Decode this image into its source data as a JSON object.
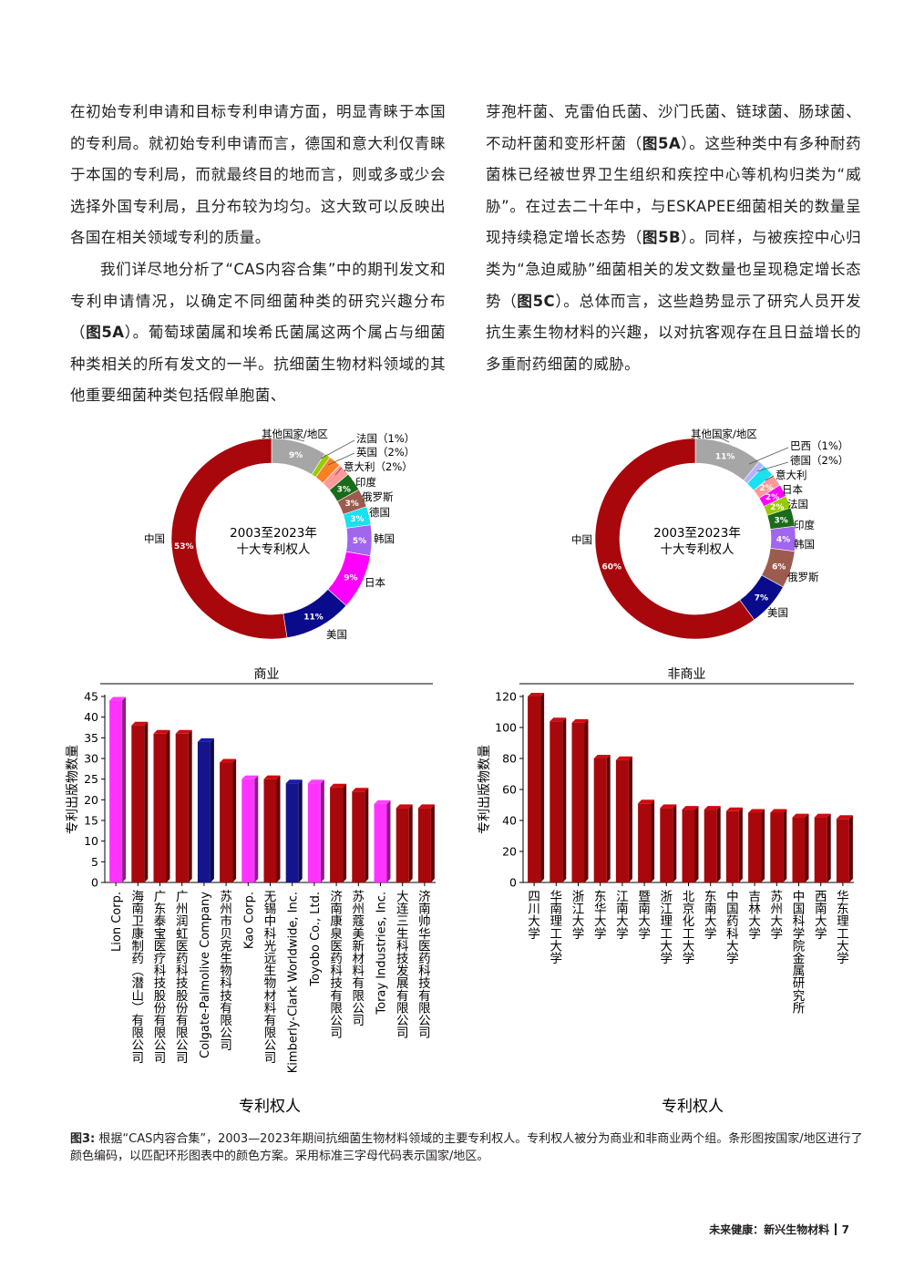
{
  "text": {
    "left_p1": "在初始专利申请和目标专利申请方面，明显青睐于本国的专利局。就初始专利申请而言，德国和意大利仅青睐于本国的专利局，而就最终目的地而言，则或多或少会选择外国专利局，且分布较为均匀。这大致可以反映出各国在相关领域专利的质量。",
    "left_p2a": "我们详尽地分析了“CAS内容合集”中的期刊发文和专利申请情况，以确定不同细菌种类的研究兴趣分布（",
    "left_p2_ref": "图5A",
    "left_p2b": "）。葡萄球菌属和埃希氏菌属这两个属占与细菌种类相关的所有发文的一半。抗细菌生物材料领域的其他重要细菌种类包括假单胞菌、",
    "right_a": "芽孢杆菌、克雷伯氏菌、沙门氏菌、链球菌、肠球菌、不动杆菌和变形杆菌（",
    "right_ref1": "图5A",
    "right_b": "）。这些种类中有多种耐药菌株已经被世界卫生组织和疾控中心等机构归类为“威胁”。在过去二十年中，与ESKAPEE细菌相关的数量呈现持续稳定增长态势（",
    "right_ref2": "图5B",
    "right_c": "）。同样，与被疾控中心归类为“急迫威胁”细菌相关的发文数量也呈现稳定增长态势（",
    "right_ref3": "图5C",
    "right_d": "）。总体而言，这些趋势显示了研究人员开发抗生素生物材料的兴趣，以对抗客观存在且日益增长的多重耐药细菌的威胁。"
  },
  "caption": {
    "label": "图3:",
    "text": " 根据“CAS内容合集”，2003—2023年期间抗细菌生物材料领域的主要专利权人。专利权人被分为商业和非商业两个组。条形图按国家/地区进行了颜色编码，以匹配环形图表中的颜色方案。采用标准三字母代码表示国家/地区。"
  },
  "footer": {
    "title": "未来健康：新兴生物材料",
    "page": "7"
  },
  "chart_data": [
    {
      "type": "pie",
      "variant": "donut",
      "center_label": [
        "2003至2023年",
        "十大专利权人"
      ],
      "slices": [
        {
          "label": "其他国家/地区",
          "value": 9,
          "text": "9%",
          "color": "#a6a6a6"
        },
        {
          "label": "法国（1%）",
          "value": 1,
          "text": "",
          "color": "#99cc00"
        },
        {
          "label": "英国（2%）",
          "value": 2,
          "text": "",
          "color": "#ff7f27"
        },
        {
          "label": "意大利（2%）",
          "value": 2,
          "text": "",
          "color": "#ff9999"
        },
        {
          "label": "印度",
          "value": 3,
          "text": "3%",
          "color": "#1a6b1a"
        },
        {
          "label": "俄罗斯",
          "value": 3,
          "text": "3%",
          "color": "#9c5b4e"
        },
        {
          "label": "德国",
          "value": 3,
          "text": "3%",
          "color": "#1ae0f0"
        },
        {
          "label": "韩国",
          "value": 5,
          "text": "5%",
          "color": "#a066ee"
        },
        {
          "label": "日本",
          "value": 9,
          "text": "9%",
          "color": "#ff00ff"
        },
        {
          "label": "美国",
          "value": 11,
          "text": "11%",
          "color": "#0a0a8c"
        },
        {
          "label": "中国",
          "value": 53,
          "text": "53%",
          "color": "#a8070c"
        }
      ]
    },
    {
      "type": "pie",
      "variant": "donut",
      "center_label": [
        "2003至2023年",
        "十大专利权人"
      ],
      "slices": [
        {
          "label": "其他国家/地区",
          "value": 11,
          "text": "11%",
          "color": "#a6a6a6"
        },
        {
          "label": "巴西（1%）",
          "value": 1,
          "text": "",
          "color": "#b3b3ff"
        },
        {
          "label": "德国（2%）",
          "value": 2,
          "text": "",
          "color": "#1ae0f0"
        },
        {
          "label": "意大利",
          "value": 2,
          "text": "2%",
          "color": "#ff9999"
        },
        {
          "label": "日本",
          "value": 2,
          "text": "2%",
          "color": "#ff00ff"
        },
        {
          "label": "法国",
          "value": 2,
          "text": "2%",
          "color": "#99cc00"
        },
        {
          "label": "印度",
          "value": 3,
          "text": "3%",
          "color": "#1a6b1a"
        },
        {
          "label": "韩国",
          "value": 4,
          "text": "4%",
          "color": "#a066ee"
        },
        {
          "label": "俄罗斯",
          "value": 6,
          "text": "6%",
          "color": "#9c5b4e"
        },
        {
          "label": "美国",
          "value": 7,
          "text": "7%",
          "color": "#0a0a8c"
        },
        {
          "label": "中国",
          "value": 60,
          "text": "60%",
          "color": "#a8070c"
        }
      ]
    },
    {
      "type": "bar",
      "title": "商业",
      "ylabel": "专利出版物数量",
      "xlabel": "专利权人",
      "ylim": [
        0,
        45
      ],
      "yticks": [
        0,
        5,
        10,
        15,
        20,
        25,
        30,
        35,
        40,
        45
      ],
      "categories": [
        "Lion Corp.",
        "海南卫康制药（潜山）有限公司",
        "广东泰宝医疗科技股份有限公司",
        "广州润虹医药科技股份有限公司",
        "Colgate-Palmolive Company",
        "苏州市贝克生物科技有限公司",
        "Kao Corp.",
        "无锡中科光远生物材料有限公司",
        "Kimberly-Clark Worldwide, Inc.",
        "Toyobo Co., Ltd.",
        "济南康泉医药科技有限公司",
        "苏州蔻美新材料有限公司",
        "Toray Industries, Inc.",
        "大连三生科技发展有限公司",
        "济南帅华医药科技有限公司"
      ],
      "values": [
        44,
        38,
        36,
        36,
        34,
        29,
        25,
        25,
        24,
        24,
        23,
        22,
        19,
        18,
        18
      ],
      "colors": [
        "#ff33ff",
        "#a8070c",
        "#a8070c",
        "#a8070c",
        "#14148c",
        "#a8070c",
        "#ff33ff",
        "#a8070c",
        "#14148c",
        "#ff33ff",
        "#a8070c",
        "#a8070c",
        "#ff33ff",
        "#a8070c",
        "#a8070c"
      ]
    },
    {
      "type": "bar",
      "title": "非商业",
      "ylabel": "专利出版物数量",
      "xlabel": "专利权人",
      "ylim": [
        0,
        120
      ],
      "yticks": [
        0,
        20,
        40,
        60,
        80,
        100,
        120
      ],
      "categories": [
        "四川大学",
        "华南理工大学",
        "浙江大学",
        "东华大学",
        "江南大学",
        "暨南大学",
        "浙江理工大学",
        "北京化工大学",
        "东南大学",
        "中国药科大学",
        "吉林大学",
        "苏州大学",
        "中国科学院金属研究所",
        "西南大学",
        "华东理工大学"
      ],
      "values": [
        120,
        104,
        103,
        80,
        79,
        51,
        48,
        47,
        47,
        46,
        45,
        45,
        42,
        42,
        41
      ],
      "colors": [
        "#a8070c",
        "#a8070c",
        "#a8070c",
        "#a8070c",
        "#a8070c",
        "#a8070c",
        "#a8070c",
        "#a8070c",
        "#a8070c",
        "#a8070c",
        "#a8070c",
        "#a8070c",
        "#a8070c",
        "#a8070c",
        "#a8070c"
      ]
    }
  ]
}
